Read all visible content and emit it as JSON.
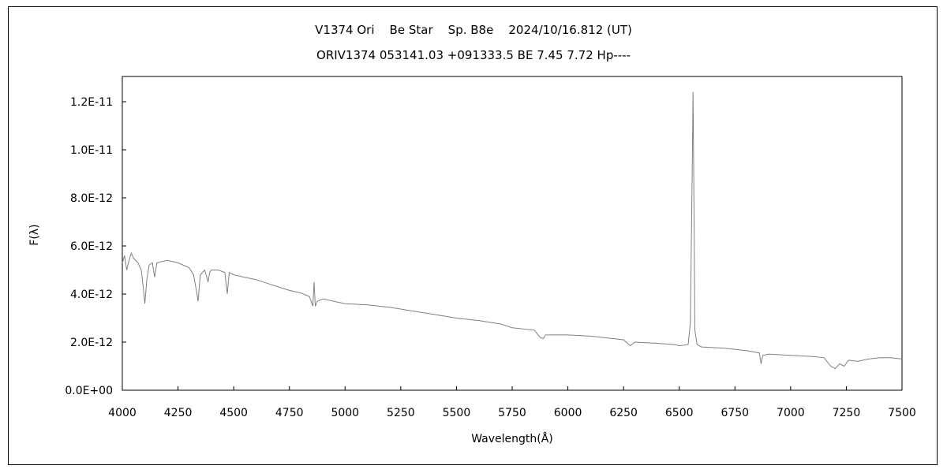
{
  "chart_data": {
    "type": "line",
    "title": "V1374 Ori    Be Star    Sp. B8e    2024/10/16.812 (UT)",
    "subtitle": "ORIV1374 053141.03 +091333.5 BE 7.45 7.72 Hp----",
    "xlabel": "Wavelength(Å)",
    "ylabel": "F(λ)",
    "xlim": [
      4000,
      7500
    ],
    "ylim": [
      0,
      1.305e-11
    ],
    "x_ticks": [
      4000,
      4250,
      4500,
      4750,
      5000,
      5250,
      5500,
      5750,
      6000,
      6250,
      6500,
      6750,
      7000,
      7250,
      7500
    ],
    "x_tick_labels": [
      "4000",
      "4250",
      "4500",
      "4750",
      "5000",
      "5250",
      "5500",
      "5750",
      "6000",
      "6250",
      "6500",
      "6750",
      "7000",
      "7250",
      "7500"
    ],
    "y_ticks": [
      0,
      2e-12,
      4e-12,
      6e-12,
      8e-12,
      1e-11,
      1.2e-11
    ],
    "y_tick_labels": [
      "0.0E+00",
      "2.0E-12",
      "4.0E-12",
      "6.0E-12",
      "8.0E-12",
      "1.0E-11",
      "1.2E-11"
    ],
    "grid": false,
    "series_color": "#808080",
    "series": [
      {
        "name": "spectrum",
        "y_scale": 1e-12,
        "points": [
          [
            4000,
            5.3
          ],
          [
            4010,
            5.6
          ],
          [
            4020,
            5.0
          ],
          [
            4030,
            5.4
          ],
          [
            4040,
            5.7
          ],
          [
            4050,
            5.5
          ],
          [
            4070,
            5.3
          ],
          [
            4085,
            5.0
          ],
          [
            4095,
            4.2
          ],
          [
            4101,
            3.6
          ],
          [
            4110,
            4.6
          ],
          [
            4120,
            5.2
          ],
          [
            4135,
            5.3
          ],
          [
            4145,
            4.7
          ],
          [
            4155,
            5.3
          ],
          [
            4200,
            5.4
          ],
          [
            4250,
            5.3
          ],
          [
            4300,
            5.1
          ],
          [
            4320,
            4.8
          ],
          [
            4335,
            4.0
          ],
          [
            4340,
            3.7
          ],
          [
            4350,
            4.8
          ],
          [
            4370,
            5.0
          ],
          [
            4385,
            4.5
          ],
          [
            4392,
            4.9
          ],
          [
            4400,
            5.0
          ],
          [
            4430,
            5.0
          ],
          [
            4460,
            4.9
          ],
          [
            4471,
            4.0
          ],
          [
            4480,
            4.9
          ],
          [
            4500,
            4.8
          ],
          [
            4550,
            4.7
          ],
          [
            4600,
            4.6
          ],
          [
            4650,
            4.45
          ],
          [
            4700,
            4.3
          ],
          [
            4750,
            4.15
          ],
          [
            4800,
            4.05
          ],
          [
            4840,
            3.9
          ],
          [
            4855,
            3.5
          ],
          [
            4861,
            4.5
          ],
          [
            4866,
            3.5
          ],
          [
            4875,
            3.7
          ],
          [
            4900,
            3.8
          ],
          [
            4950,
            3.7
          ],
          [
            5000,
            3.6
          ],
          [
            5100,
            3.55
          ],
          [
            5200,
            3.45
          ],
          [
            5300,
            3.3
          ],
          [
            5400,
            3.15
          ],
          [
            5500,
            3.0
          ],
          [
            5600,
            2.9
          ],
          [
            5700,
            2.75
          ],
          [
            5750,
            2.6
          ],
          [
            5850,
            2.5
          ],
          [
            5875,
            2.2
          ],
          [
            5890,
            2.15
          ],
          [
            5900,
            2.3
          ],
          [
            5950,
            2.3
          ],
          [
            6000,
            2.3
          ],
          [
            6100,
            2.25
          ],
          [
            6200,
            2.15
          ],
          [
            6250,
            2.1
          ],
          [
            6280,
            1.85
          ],
          [
            6300,
            2.0
          ],
          [
            6400,
            1.95
          ],
          [
            6480,
            1.9
          ],
          [
            6500,
            1.85
          ],
          [
            6540,
            1.9
          ],
          [
            6550,
            2.8
          ],
          [
            6558,
            9.0
          ],
          [
            6562,
            12.4
          ],
          [
            6566,
            8.0
          ],
          [
            6570,
            2.5
          ],
          [
            6580,
            1.9
          ],
          [
            6600,
            1.8
          ],
          [
            6700,
            1.75
          ],
          [
            6800,
            1.65
          ],
          [
            6860,
            1.55
          ],
          [
            6867,
            1.1
          ],
          [
            6875,
            1.45
          ],
          [
            6900,
            1.5
          ],
          [
            7000,
            1.45
          ],
          [
            7100,
            1.4
          ],
          [
            7150,
            1.35
          ],
          [
            7180,
            1.0
          ],
          [
            7200,
            0.9
          ],
          [
            7220,
            1.1
          ],
          [
            7240,
            1.0
          ],
          [
            7260,
            1.25
          ],
          [
            7300,
            1.2
          ],
          [
            7350,
            1.3
          ],
          [
            7400,
            1.35
          ],
          [
            7450,
            1.35
          ],
          [
            7500,
            1.3
          ]
        ]
      }
    ]
  }
}
